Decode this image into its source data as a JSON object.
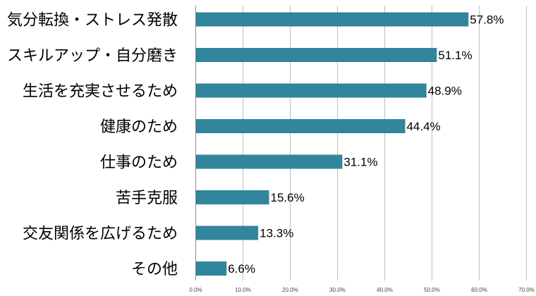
{
  "chart_data": {
    "type": "bar",
    "orientation": "horizontal",
    "categories": [
      "気分転換・ストレス発散",
      "スキルアップ・自分磨き",
      "生活を充実させるため",
      "健康のため",
      "仕事のため",
      "苦手克服",
      "交友関係を広げるため",
      "その他"
    ],
    "values": [
      57.8,
      51.1,
      48.9,
      44.4,
      31.1,
      15.6,
      13.3,
      6.6
    ],
    "value_labels": [
      "57.8%",
      "51.1%",
      "48.9%",
      "44.4%",
      "31.1%",
      "15.6%",
      "13.3%",
      "6.6%"
    ],
    "x_ticks": [
      "0.0%",
      "10.0%",
      "20.0%",
      "30.0%",
      "40.0%",
      "50.0%",
      "60.0%",
      "70.0%"
    ],
    "xlim": [
      0,
      70
    ],
    "grid": true,
    "bar_color": "#31859c",
    "title": "",
    "xlabel": "",
    "ylabel": ""
  }
}
